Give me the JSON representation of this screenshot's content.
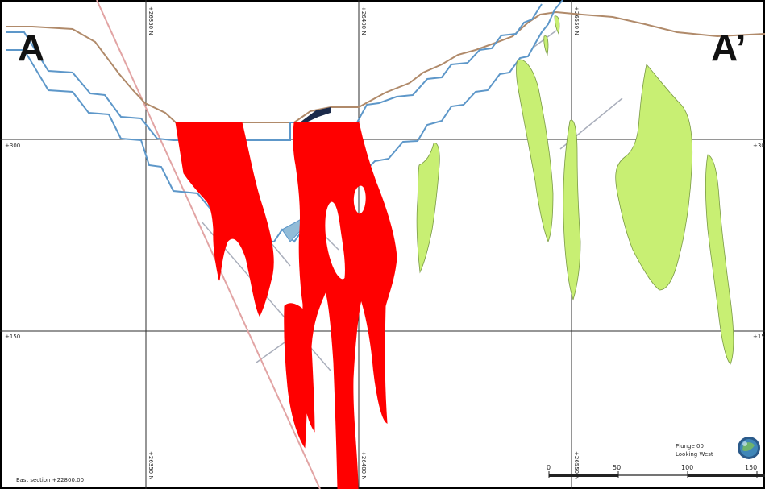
{
  "section_labels": {
    "left": "A",
    "right": "A’"
  },
  "grid": {
    "northing_labels": [
      "+26350 N",
      "+26400 N",
      "+26550 N"
    ],
    "elevation_labels": {
      "upper_left": "+300",
      "upper_right": "+30",
      "lower_left": "+150",
      "lower_right": "+15"
    }
  },
  "footer": {
    "section_caption": "East section +22800.00",
    "view_line1": "Plunge 00",
    "view_line2": "Looking West"
  },
  "scale_bar": {
    "labels": [
      "0",
      "50",
      "100",
      "150"
    ]
  },
  "colors": {
    "ore_body_red": "#ff0000",
    "ore_body_green": "#c8ef73",
    "pit_outline_blue": "#5d97c9",
    "topography_line": "#b08a6a",
    "fault_line": "#e6a3a3",
    "grid_line": "#3a3a3a"
  }
}
